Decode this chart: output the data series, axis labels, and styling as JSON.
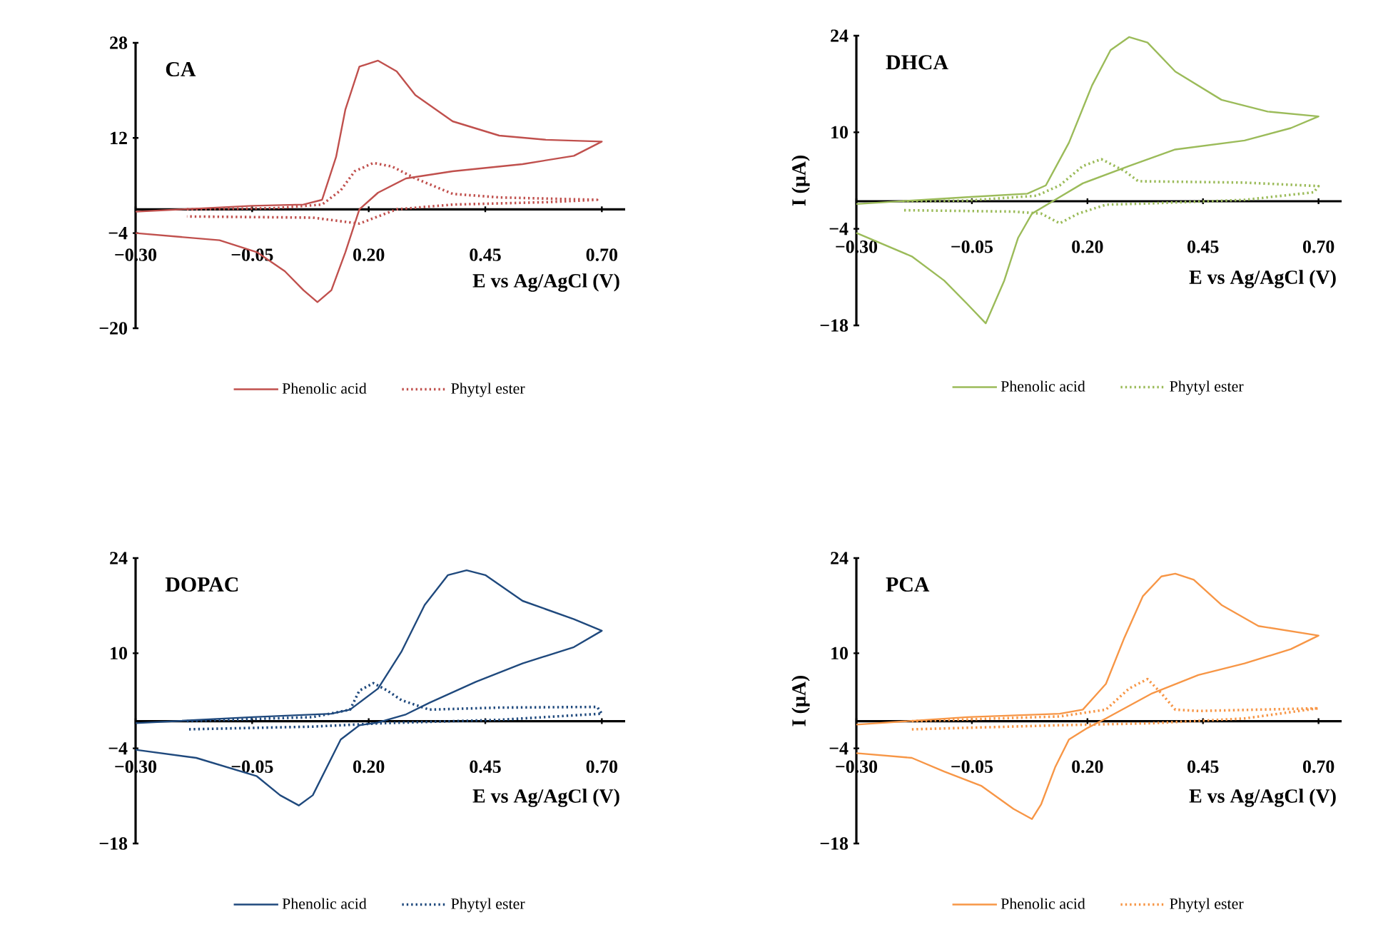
{
  "chart_data": [
    {
      "type": "line",
      "title": "CA",
      "xlabel": "E vs Ag/AgCl (V)",
      "legend": "bottom",
      "xlim": [
        -0.3,
        0.75
      ],
      "ylim": [
        -20,
        28
      ],
      "xticks": [
        {
          "value": -0.3,
          "label": "−0.30"
        },
        {
          "value": -0.05,
          "label": "−0.05"
        },
        {
          "value": 0.2,
          "label": "0.20"
        },
        {
          "value": 0.45,
          "label": "0.45"
        },
        {
          "value": 0.7,
          "label": "0.70"
        }
      ],
      "yticks": [
        {
          "value": -20,
          "label": "−20"
        },
        {
          "value": -4,
          "label": "−4"
        },
        12,
        28
      ],
      "series": [
        {
          "name": "Phenolic acid",
          "color": "#c0504d",
          "line_style": "solid",
          "x": [
            -0.3,
            -0.05,
            0.06,
            0.1,
            0.13,
            0.15,
            0.18,
            0.22,
            0.26,
            0.3,
            0.38,
            0.48,
            0.58,
            0.7,
            0.64,
            0.53,
            0.38,
            0.28,
            0.22,
            0.18,
            0.15,
            0.12,
            0.09,
            0.06,
            0.02,
            -0.04,
            -0.12,
            -0.3
          ],
          "values": [
            -0.4,
            0.6,
            0.8,
            1.6,
            8.8,
            16.8,
            24,
            25,
            23.2,
            19.2,
            14.8,
            12.4,
            11.7,
            11.4,
            9,
            7.6,
            6.4,
            5.2,
            2.8,
            0,
            -7.2,
            -13.6,
            -15.6,
            -13.6,
            -10.4,
            -7.2,
            -5.2,
            -4
          ]
        },
        {
          "name": "Phytyl ester",
          "color": "#c0504d",
          "line_style": "dotted",
          "x": [
            -0.19,
            0.0,
            0.1,
            0.14,
            0.17,
            0.21,
            0.25,
            0.3,
            0.38,
            0.48,
            0.69,
            0.58,
            0.38,
            0.26,
            0.18,
            0.08,
            -0.19
          ],
          "values": [
            0,
            0.2,
            0.8,
            3.2,
            6.4,
            7.8,
            7.2,
            5.2,
            2.6,
            2,
            1.6,
            1.2,
            0.8,
            0,
            -2.4,
            -1.4,
            -1.2
          ]
        }
      ]
    },
    {
      "type": "line",
      "title": "DHCA",
      "xlabel": "E vs Ag/AgCl (V)",
      "ylabel": "I (µA)",
      "legend": "bottom",
      "xlim": [
        -0.3,
        0.75
      ],
      "ylim": [
        -18,
        24
      ],
      "xticks": [
        {
          "value": -0.3,
          "label": "−0.30"
        },
        {
          "value": -0.05,
          "label": "−0.05"
        },
        {
          "value": 0.2,
          "label": "0.20"
        },
        {
          "value": 0.45,
          "label": "0.45"
        },
        {
          "value": 0.7,
          "label": "0.70"
        }
      ],
      "yticks": [
        {
          "value": -18,
          "label": "−18"
        },
        {
          "value": -4,
          "label": "−4"
        },
        10,
        24
      ],
      "series": [
        {
          "name": "Phenolic acid",
          "color": "#9bbb59",
          "line_style": "solid",
          "x": [
            -0.3,
            -0.06,
            0.07,
            0.11,
            0.16,
            0.21,
            0.25,
            0.29,
            0.33,
            0.39,
            0.49,
            0.59,
            0.7,
            0.64,
            0.54,
            0.39,
            0.29,
            0.19,
            0.13,
            0.08,
            0.05,
            0.02,
            -0.02,
            -0.06,
            -0.11,
            -0.18,
            -0.3
          ],
          "values": [
            -0.4,
            0.6,
            1.1,
            2.3,
            8.5,
            16.8,
            21.9,
            23.8,
            23,
            18.8,
            14.7,
            13,
            12.3,
            10.6,
            8.8,
            7.5,
            5.1,
            2.6,
            0.2,
            -1.8,
            -5.3,
            -11.5,
            -17.7,
            -14.9,
            -11.5,
            -8,
            -4.6
          ]
        },
        {
          "name": "Phytyl ester",
          "color": "#9bbb59",
          "line_style": "dotted",
          "x": [
            -0.2,
            -0.06,
            0.09,
            0.14,
            0.19,
            0.23,
            0.28,
            0.31,
            0.54,
            0.7,
            0.69,
            0.54,
            0.34,
            0.24,
            0.18,
            0.14,
            0.1,
            0.04,
            -0.2
          ],
          "values": [
            0,
            0.1,
            0.8,
            2.3,
            5.1,
            6.1,
            4.4,
            2.9,
            2.7,
            2.2,
            1.3,
            0.2,
            -0.3,
            -0.5,
            -1.8,
            -3.2,
            -1.8,
            -1.5,
            -1.3
          ]
        }
      ]
    },
    {
      "type": "line",
      "title": "DOPAC",
      "xlabel": "E vs Ag/AgCl (V)",
      "legend": "bottom",
      "xlim": [
        -0.3,
        0.75
      ],
      "ylim": [
        -18,
        24
      ],
      "xticks": [
        {
          "value": -0.3,
          "label": "−0.30"
        },
        {
          "value": -0.05,
          "label": "−0.05"
        },
        {
          "value": 0.2,
          "label": "0.20"
        },
        {
          "value": 0.45,
          "label": "0.45"
        },
        {
          "value": 0.7,
          "label": "0.70"
        }
      ],
      "yticks": [
        {
          "value": -18,
          "label": "−18"
        },
        {
          "value": -4,
          "label": "−4"
        },
        10,
        24
      ],
      "series": [
        {
          "name": "Phenolic acid",
          "color": "#1f497d",
          "line_style": "solid",
          "x": [
            -0.3,
            -0.05,
            0.12,
            0.16,
            0.22,
            0.27,
            0.32,
            0.37,
            0.41,
            0.45,
            0.53,
            0.64,
            0.7,
            0.64,
            0.53,
            0.43,
            0.33,
            0.28,
            0.22,
            0.18,
            0.14,
            0.11,
            0.08,
            0.05,
            0.01,
            -0.04,
            -0.17,
            -0.3
          ],
          "values": [
            -0.3,
            0.6,
            1.1,
            1.7,
            4.8,
            10.2,
            17.1,
            21.5,
            22.2,
            21.5,
            17.7,
            15,
            13.3,
            10.9,
            8.5,
            5.8,
            2.7,
            1,
            -0.2,
            -0.6,
            -2.7,
            -6.8,
            -10.9,
            -12.4,
            -10.9,
            -8.1,
            -5.4,
            -4.2
          ]
        },
        {
          "name": "Phytyl ester",
          "color": "#1f497d",
          "line_style": "dotted",
          "x": [
            -0.19,
            0.08,
            0.16,
            0.18,
            0.21,
            0.24,
            0.27,
            0.33,
            0.48,
            0.69,
            0.7,
            0.48,
            0.23,
            0.08,
            -0.19
          ],
          "values": [
            0,
            0.6,
            1.7,
            4.5,
            5.6,
            4.5,
            3.1,
            1.7,
            2,
            2.1,
            1.1,
            0.2,
            -0.3,
            -0.8,
            -1.2
          ]
        }
      ]
    },
    {
      "type": "line",
      "title": "PCA",
      "xlabel": "E vs Ag/AgCl (V)",
      "ylabel": "I (µA)",
      "legend": "bottom",
      "xlim": [
        -0.3,
        0.75
      ],
      "ylim": [
        -18,
        24
      ],
      "xticks": [
        {
          "value": -0.3,
          "label": "−0.30"
        },
        {
          "value": -0.05,
          "label": "−0.05"
        },
        {
          "value": 0.2,
          "label": "0.20"
        },
        {
          "value": 0.45,
          "label": "0.45"
        },
        {
          "value": 0.7,
          "label": "0.70"
        }
      ],
      "yticks": [
        {
          "value": -18,
          "label": "−18"
        },
        {
          "value": -4,
          "label": "−4"
        },
        10,
        24
      ],
      "series": [
        {
          "name": "Phenolic acid",
          "color": "#f79646",
          "line_style": "solid",
          "x": [
            -0.3,
            -0.06,
            0.14,
            0.19,
            0.24,
            0.28,
            0.32,
            0.36,
            0.39,
            0.43,
            0.49,
            0.57,
            0.7,
            0.64,
            0.54,
            0.44,
            0.34,
            0.24,
            0.2,
            0.16,
            0.13,
            0.1,
            0.08,
            0.04,
            -0.03,
            -0.11,
            -0.18,
            -0.3
          ],
          "values": [
            -0.5,
            0.6,
            1.1,
            1.7,
            5.5,
            12.3,
            18.4,
            21.3,
            21.7,
            20.8,
            17.1,
            14,
            12.6,
            10.6,
            8.5,
            6.8,
            4.1,
            0.4,
            -1,
            -2.7,
            -6.8,
            -12.2,
            -14.4,
            -12.9,
            -9.5,
            -7.4,
            -5.4,
            -4.7
          ]
        },
        {
          "name": "Phytyl ester",
          "color": "#f79646",
          "line_style": "dotted",
          "x": [
            -0.18,
            0.14,
            0.24,
            0.29,
            0.33,
            0.36,
            0.39,
            0.44,
            0.7,
            0.54,
            0.34,
            0.14,
            -0.18
          ],
          "values": [
            0,
            0.7,
            1.7,
            4.8,
            6.2,
            4.1,
            1.7,
            1.5,
            1.9,
            0.4,
            -0.3,
            -0.6,
            -1.2
          ]
        }
      ]
    }
  ]
}
